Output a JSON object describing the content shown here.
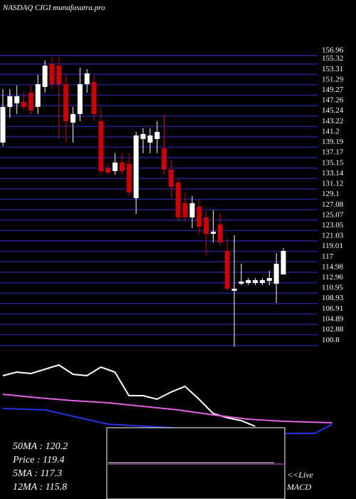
{
  "chart_data": [
    {
      "type": "candlestick",
      "title": "NASDAQ CIGI munafasutra.pro",
      "up_color": "#ffffff",
      "down_color": "#cc0000",
      "grid": true,
      "grid_color": "#22228a",
      "ylim": [
        99.5,
        157.9
      ],
      "yticks": [
        156.96,
        155.32,
        153.31,
        151.29,
        149.27,
        147.26,
        145.24,
        143.22,
        141.2,
        139.19,
        137.17,
        135.15,
        133.14,
        131.12,
        129.1,
        127.08,
        125.07,
        123.05,
        121.03,
        119.01,
        117,
        114.98,
        112.96,
        110.95,
        108.93,
        106.91,
        104.89,
        102.88,
        100.8
      ],
      "ohlc": [
        [
          139.12,
          149.48,
          138.43,
          146.03
        ],
        [
          146.03,
          149.48,
          143.95,
          148.1
        ],
        [
          146.72,
          150.17,
          144.65,
          148.1
        ],
        [
          146.99,
          148.79,
          145.34,
          146.03
        ],
        [
          148.79,
          150.17,
          144.65,
          145.34
        ],
        [
          146.03,
          152.24,
          144.65,
          150.44
        ],
        [
          149.89,
          155.0,
          148.79,
          154.03
        ],
        [
          154.31,
          155.69,
          149.48,
          150.44
        ],
        [
          154.03,
          155.69,
          139.81,
          150.44
        ],
        [
          150.44,
          152.24,
          139.12,
          143.27
        ],
        [
          142.99,
          146.03,
          139.12,
          144.65
        ],
        [
          144.65,
          153.62,
          143.27,
          150.44
        ],
        [
          150.44,
          153.34,
          148.79,
          152.52
        ],
        [
          150.86,
          152.24,
          143.27,
          144.65
        ],
        [
          143.27,
          146.03,
          132.91,
          133.6
        ],
        [
          134.15,
          134.98,
          132.91,
          133.32
        ],
        [
          133.6,
          137.05,
          132.91,
          135.26
        ],
        [
          135.26,
          137.05,
          132.91,
          133.6
        ],
        [
          134.98,
          137.05,
          128.77,
          129.46
        ],
        [
          128.36,
          141.19,
          125.32,
          140.5
        ],
        [
          139.81,
          141.88,
          137.05,
          140.78
        ],
        [
          139.12,
          141.88,
          137.05,
          140.5
        ],
        [
          139.81,
          143.27,
          137.05,
          141.19
        ],
        [
          138.02,
          144.65,
          132.91,
          133.88
        ],
        [
          133.88,
          135.67,
          128.36,
          130.56
        ],
        [
          131.39,
          132.22,
          123.94,
          124.63
        ],
        [
          127.39,
          129.46,
          123.94,
          124.63
        ],
        [
          124.63,
          128.77,
          122.56,
          127.39
        ],
        [
          126.7,
          128.08,
          121.18,
          122.83
        ],
        [
          124.63,
          126.01,
          117.31,
          121.45
        ],
        [
          121.45,
          126.01,
          119.8,
          121.87
        ],
        [
          123.25,
          125.32,
          119.1,
          119.8
        ],
        [
          118.14,
          120.49,
          110.41,
          110.82
        ],
        [
          110.41,
          121.18,
          99.6,
          110.82
        ],
        [
          111.79,
          115.65,
          111.51,
          112.2
        ],
        [
          111.93,
          112.89,
          111.51,
          112.48
        ],
        [
          111.93,
          112.89,
          111.51,
          112.48
        ],
        [
          111.93,
          112.89,
          111.51,
          112.48
        ],
        [
          112.34,
          114.27,
          111.51,
          112.89
        ],
        [
          111.79,
          117.72,
          108.06,
          115.65
        ],
        [
          113.58,
          118.69,
          113.58,
          118.14
        ]
      ]
    },
    {
      "type": "line",
      "xlim": [
        -0.4,
        50.4
      ],
      "ylim": [
        0,
        100
      ],
      "series": [
        {
          "color": "#ffffff",
          "x": [
            0,
            2,
            4,
            6,
            8,
            10,
            12,
            14,
            16,
            18,
            20,
            22,
            24,
            26,
            28,
            30,
            32,
            34,
            36
          ],
          "values": [
            69.2,
            73.3,
            71.7,
            76.7,
            81.7,
            70.8,
            69.2,
            79.2,
            73.3,
            45.8,
            45.8,
            41.7,
            50,
            56.7,
            41.7,
            25,
            20,
            16.7,
            10
          ]
        },
        {
          "color": "#e060e0",
          "x": [
            0,
            5,
            10,
            15,
            20,
            25,
            30,
            35,
            40,
            47
          ],
          "values": [
            47.5,
            43.3,
            40,
            37.5,
            33.3,
            29.2,
            23.3,
            18.3,
            15.8,
            14.2
          ]
        },
        {
          "color": "#2233dd",
          "x": [
            0,
            6,
            15,
            24,
            40,
            44.5,
            47
          ],
          "values": [
            30.8,
            29.2,
            12.5,
            8.3,
            1.7,
            1.7,
            12.5
          ]
        }
      ],
      "stats": [
        "50MA : 120.2",
        "Price   : 119.4",
        "5MA : 117.3",
        "12MA : 115.8"
      ],
      "macd_label": [
        "<<Live",
        "MACD"
      ]
    }
  ]
}
